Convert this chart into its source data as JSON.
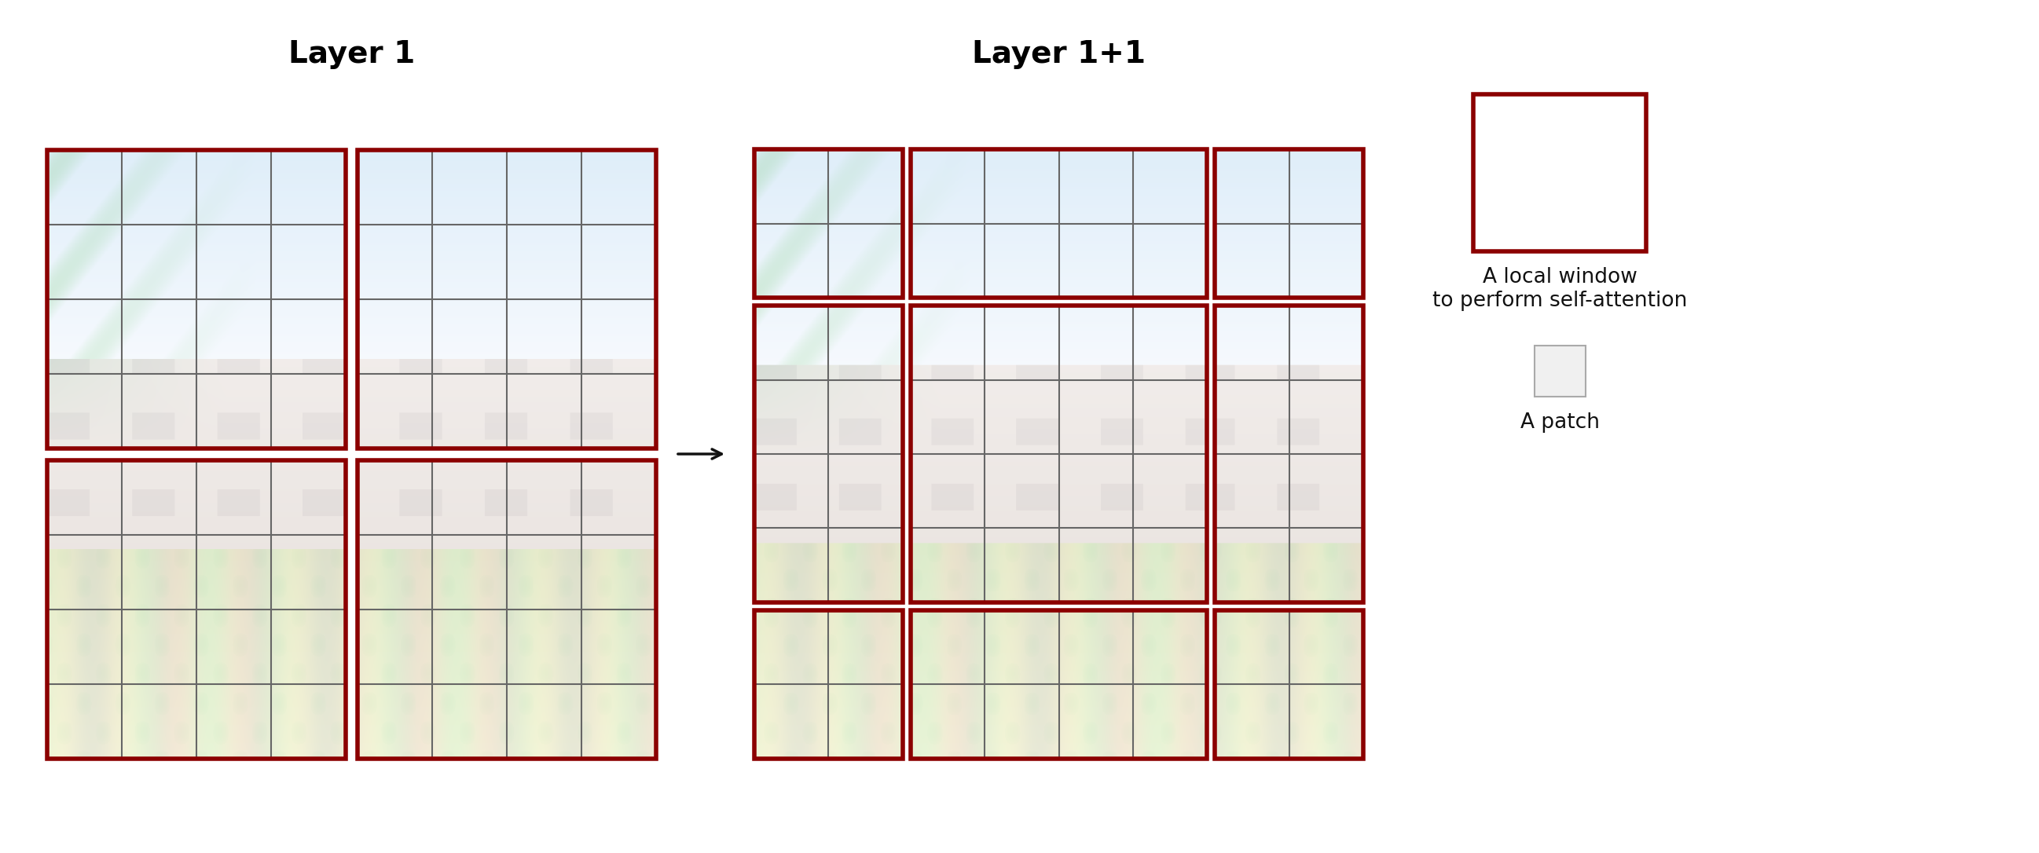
{
  "title_l": "Layer 1",
  "title_r": "Layer 1+1",
  "window_color": "#8B0000",
  "window_linewidth": 4,
  "grid_color": "#666666",
  "grid_linewidth": 1.5,
  "patch_border_color": "#aaaaaa",
  "arrow_color": "#111111",
  "bg_color": "#ffffff",
  "text_color": "#111111",
  "legend_box1_text": "A local window\nto perform self-attention",
  "legend_box2_text": "A patch",
  "img_alpha": 0.45,
  "grid_rows": 4,
  "grid_cols": 4,
  "figw": 25.95,
  "figh": 10.86
}
